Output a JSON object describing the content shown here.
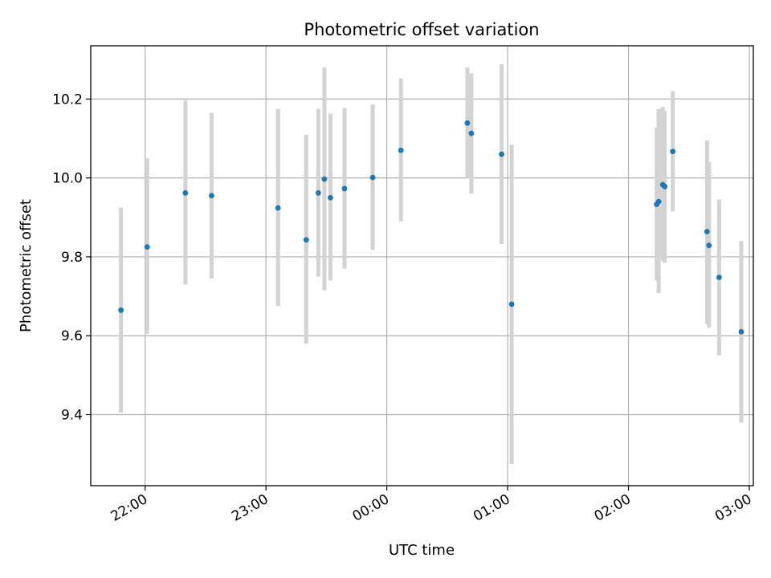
{
  "chart_data": {
    "type": "scatter",
    "title": "Photometric offset variation",
    "xlabel": "UTC time",
    "ylabel": "Photometric offset",
    "x_axis_kind": "time (hours, day rollover at 00:00)",
    "xlim": [
      "21:33",
      "03:02"
    ],
    "ylim": [
      9.22,
      10.335
    ],
    "x_ticks": [
      "22:00",
      "23:00",
      "00:00",
      "01:00",
      "02:00",
      "03:00"
    ],
    "y_ticks": [
      9.4,
      9.6,
      9.8,
      10.0,
      10.2
    ],
    "grid": true,
    "point_color": "#1f77b4",
    "errorbar_color": "#d3d3d3",
    "points": [
      {
        "x": "21:48",
        "y": 9.665,
        "err_low": 9.405,
        "err_high": 9.925
      },
      {
        "x": "22:01",
        "y": 9.825,
        "err_low": 9.605,
        "err_high": 10.05
      },
      {
        "x": "22:20",
        "y": 9.962,
        "err_low": 9.73,
        "err_high": 10.197
      },
      {
        "x": "22:33",
        "y": 9.955,
        "err_low": 9.745,
        "err_high": 10.165
      },
      {
        "x": "23:06",
        "y": 9.924,
        "err_low": 9.675,
        "err_high": 10.175
      },
      {
        "x": "23:20",
        "y": 9.843,
        "err_low": 9.58,
        "err_high": 10.11
      },
      {
        "x": "23:26",
        "y": 9.962,
        "err_low": 9.75,
        "err_high": 10.175
      },
      {
        "x": "23:29",
        "y": 9.997,
        "err_low": 9.715,
        "err_high": 10.28
      },
      {
        "x": "23:32",
        "y": 9.95,
        "err_low": 9.74,
        "err_high": 10.163
      },
      {
        "x": "23:39",
        "y": 9.973,
        "err_low": 9.77,
        "err_high": 10.177
      },
      {
        "x": "23:53",
        "y": 10.001,
        "err_low": 9.817,
        "err_high": 10.187
      },
      {
        "x": "00:07",
        "y": 10.07,
        "err_low": 9.89,
        "err_high": 10.252
      },
      {
        "x": "00:40",
        "y": 10.139,
        "err_low": 10.0,
        "err_high": 10.28
      },
      {
        "x": "00:42",
        "y": 10.113,
        "err_low": 9.96,
        "err_high": 10.265
      },
      {
        "x": "00:57",
        "y": 10.06,
        "err_low": 9.832,
        "err_high": 10.288
      },
      {
        "x": "01:02",
        "y": 9.68,
        "err_low": 9.275,
        "err_high": 10.085
      },
      {
        "x": "02:14",
        "y": 9.933,
        "err_low": 9.74,
        "err_high": 10.127
      },
      {
        "x": "02:15",
        "y": 9.94,
        "err_low": 9.708,
        "err_high": 10.175
      },
      {
        "x": "02:17",
        "y": 9.983,
        "err_low": 9.79,
        "err_high": 10.18
      },
      {
        "x": "02:18",
        "y": 9.978,
        "err_low": 9.785,
        "err_high": 10.17
      },
      {
        "x": "02:22",
        "y": 10.067,
        "err_low": 9.915,
        "err_high": 10.22
      },
      {
        "x": "02:39",
        "y": 9.864,
        "err_low": 9.63,
        "err_high": 10.095
      },
      {
        "x": "02:40",
        "y": 9.829,
        "err_low": 9.62,
        "err_high": 10.04
      },
      {
        "x": "02:45",
        "y": 9.748,
        "err_low": 9.55,
        "err_high": 9.945
      },
      {
        "x": "02:56",
        "y": 9.61,
        "err_low": 9.38,
        "err_high": 9.84
      }
    ]
  }
}
